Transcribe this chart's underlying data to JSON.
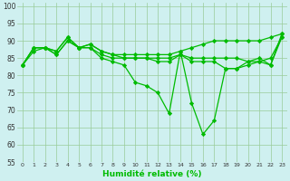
{
  "x": [
    0,
    1,
    2,
    3,
    4,
    5,
    6,
    7,
    8,
    9,
    10,
    11,
    12,
    13,
    14,
    15,
    16,
    17,
    18,
    19,
    20,
    21,
    22,
    23
  ],
  "line1": [
    83,
    88,
    88,
    87,
    91,
    88,
    89,
    87,
    86,
    86,
    86,
    86,
    86,
    86,
    87,
    88,
    89,
    90,
    90,
    90,
    90,
    90,
    91,
    92
  ],
  "line2": [
    83,
    88,
    88,
    87,
    91,
    88,
    89,
    87,
    86,
    85,
    85,
    85,
    85,
    85,
    86,
    85,
    85,
    85,
    85,
    85,
    84,
    84,
    85,
    91
  ],
  "line3": [
    83,
    88,
    88,
    86,
    90,
    88,
    88,
    86,
    85,
    85,
    85,
    85,
    84,
    84,
    86,
    84,
    84,
    84,
    82,
    82,
    83,
    84,
    83,
    91
  ],
  "line4": [
    83,
    87,
    88,
    86,
    90,
    88,
    88,
    85,
    84,
    83,
    78,
    77,
    75,
    69,
    87,
    72,
    63,
    67,
    82,
    82,
    84,
    85,
    83,
    92
  ],
  "line_color": "#00bb00",
  "bg_color": "#cff0f0",
  "grid_color": "#99cc99",
  "xlabel": "Humidité relative (%)",
  "ylim": [
    55,
    101
  ],
  "yticks": [
    55,
    60,
    65,
    70,
    75,
    80,
    85,
    90,
    95,
    100
  ],
  "xticks": [
    0,
    1,
    2,
    3,
    4,
    5,
    6,
    7,
    8,
    9,
    10,
    11,
    12,
    13,
    14,
    15,
    16,
    17,
    18,
    19,
    20,
    21,
    22,
    23
  ],
  "marker": "D",
  "markersize": 2.2,
  "linewidth": 0.9
}
